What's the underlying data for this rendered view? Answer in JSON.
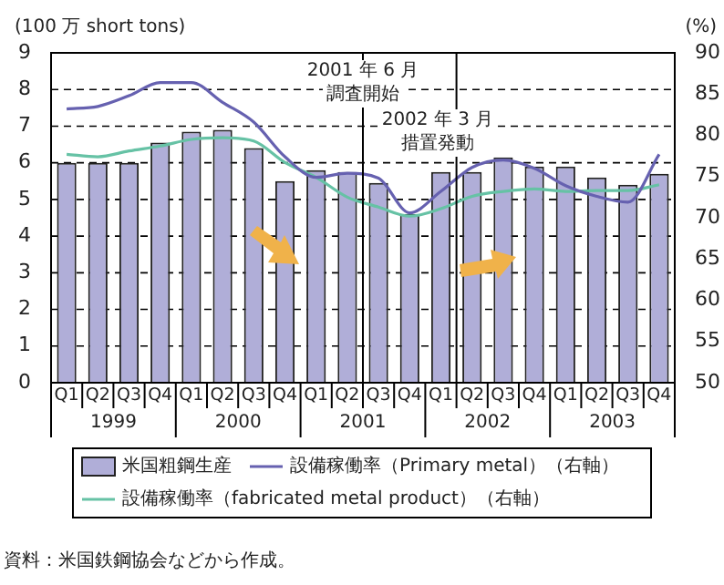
{
  "chart_data": {
    "type": "bar",
    "ylabel": "(100 万 short tons)",
    "y2label": "(%)",
    "categories": [
      "Q1",
      "Q2",
      "Q3",
      "Q4",
      "Q1",
      "Q2",
      "Q3",
      "Q4",
      "Q1",
      "Q2",
      "Q3",
      "Q4",
      "Q1",
      "Q2",
      "Q3",
      "Q4",
      "Q1",
      "Q2",
      "Q3",
      "Q4"
    ],
    "series": [
      {
        "name": "米国粗鋼生産",
        "color": "#b0aed8",
        "values": [
          6.0,
          6.0,
          6.0,
          6.55,
          6.85,
          6.9,
          6.4,
          5.5,
          5.8,
          5.75,
          5.45,
          4.6,
          5.75,
          5.75,
          6.15,
          5.9,
          5.9,
          5.6,
          5.4,
          5.7
        ]
      },
      {
        "name": "設備稼働率（Primary metal）（右軸）",
        "type": "line",
        "axis": "y2",
        "color": "#6661b0",
        "values": [
          83.2,
          83.5,
          84.8,
          86.4,
          86.4,
          84.0,
          81.6,
          77.4,
          74.9,
          75.4,
          74.8,
          70.6,
          73.2,
          76.1,
          77.0,
          76.0,
          73.9,
          72.6,
          71.9,
          77.7
        ]
      },
      {
        "name": "設備稼働率（fabricated metal product）（右軸）",
        "type": "line",
        "axis": "y2",
        "color": "#66c2a5",
        "values": [
          77.7,
          77.4,
          78.1,
          78.7,
          79.5,
          79.7,
          79.3,
          76.7,
          74.9,
          72.5,
          71.3,
          70.2,
          71.1,
          72.6,
          73.2,
          73.5,
          73.2,
          73.3,
          73.3,
          74.0
        ]
      }
    ],
    "ylim": [
      0,
      9
    ],
    "yticks": [
      0,
      1,
      2,
      3,
      4,
      5,
      6,
      7,
      8,
      9
    ],
    "y2lim": [
      50,
      90
    ],
    "y2ticks": [
      50,
      55,
      60,
      65,
      70,
      75,
      80,
      85,
      90
    ],
    "grid": "y",
    "legend": "bottom",
    "annotations": [
      "1999",
      "2000",
      "2001",
      "2002",
      "2003",
      "2001 年 6 月",
      "調査開始",
      "2002 年 3 月",
      "措置発動",
      "資料：米国鉄鋼協会などから作成。"
    ]
  }
}
